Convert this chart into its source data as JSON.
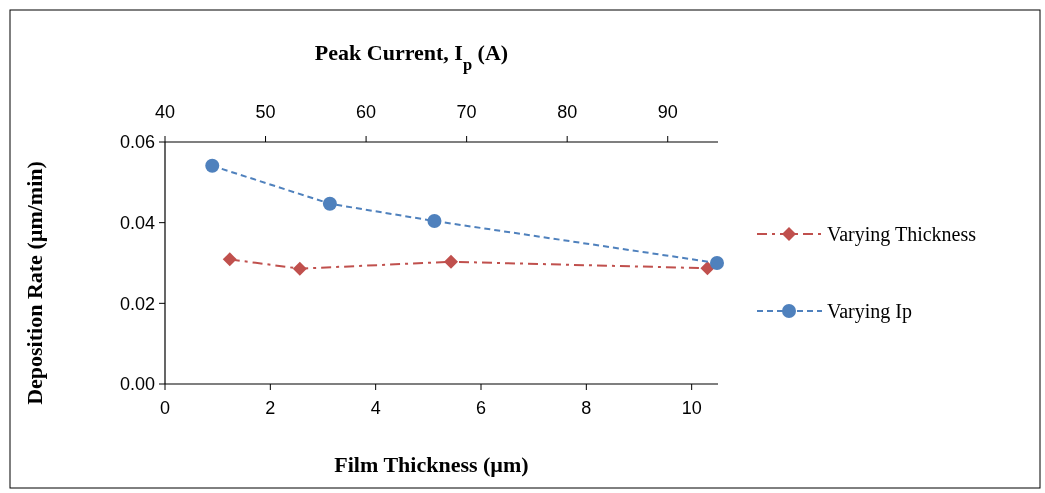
{
  "chart_data": {
    "type": "line",
    "xlabel": "Film Thickness (µm)",
    "x2label": "Peak Current, I$_{p}$ (A)",
    "ylabel": "Deposition Rate (µm/min)",
    "xlim": [
      0,
      10.5
    ],
    "xticks": [
      0,
      2,
      4,
      6,
      8,
      10
    ],
    "x2lim": [
      40,
      95
    ],
    "x2ticks": [
      40,
      50,
      60,
      70,
      80,
      90
    ],
    "ylim": [
      0,
      0.06
    ],
    "yticks": [
      {
        "value": 0,
        "label": "0.00"
      },
      {
        "value": 0.02,
        "label": "0.02"
      },
      {
        "value": 0.04,
        "label": "0.04"
      },
      {
        "value": 0.06,
        "label": "0.06"
      }
    ],
    "grid": false,
    "legend": "right",
    "series": [
      {
        "name": "Varying Thickness",
        "color": "#c0504d",
        "marker": "diamond",
        "line_style": "dashdot",
        "x": [
          1.23,
          2.56,
          5.43,
          10.3
        ],
        "values": [
          0.0309,
          0.0286,
          0.0303,
          0.0287
        ]
      },
      {
        "name": "Varying Ip",
        "color": "#4f81bd",
        "marker": "circle",
        "line_style": "dashed",
        "axis": "x2",
        "x": [
          44.7,
          56.4,
          66.8,
          94.9
        ],
        "values": [
          0.0541,
          0.0447,
          0.0404,
          0.03
        ]
      }
    ]
  }
}
